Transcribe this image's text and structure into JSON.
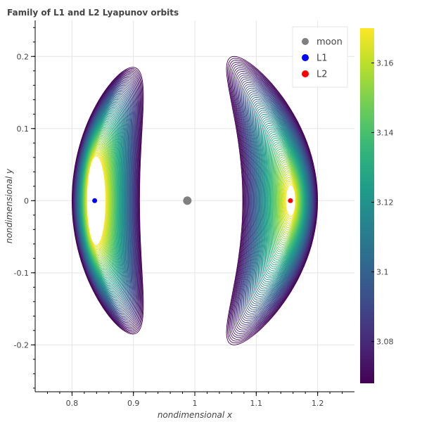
{
  "chart_data": {
    "type": "line",
    "title": "Family of L1 and L2 Lyapunov orbits",
    "xlabel": "nondimensional x",
    "ylabel": "nondimensional y",
    "xlim": [
      0.74,
      1.26
    ],
    "ylim": [
      -0.265,
      0.25
    ],
    "x_ticks": [
      "0.8",
      "0.9",
      "1",
      "1.1",
      "1.2"
    ],
    "x_tick_values": [
      0.8,
      0.9,
      1.0,
      1.1,
      1.2
    ],
    "y_ticks": [
      "0.2",
      "0.1",
      "0",
      "-0.1",
      "-0.2"
    ],
    "y_tick_values": [
      0.2,
      0.1,
      0.0,
      -0.1,
      -0.2
    ],
    "grid": true,
    "legend_position": "top-right",
    "legend": [
      {
        "label": "moon",
        "color": "#808080"
      },
      {
        "label": "L1",
        "color": "#0000ff"
      },
      {
        "label": "L2",
        "color": "#ff0000"
      }
    ],
    "points": [
      {
        "name": "moon",
        "x": 0.9878,
        "y": 0.0,
        "color": "#808080"
      },
      {
        "name": "L1",
        "x": 0.8369,
        "y": 0.0,
        "color": "#0000ff"
      },
      {
        "name": "L2",
        "x": 1.1557,
        "y": 0.0,
        "color": "#ff0000"
      }
    ],
    "families": [
      {
        "name": "L1 Lyapunov family",
        "inner_orbit": {
          "x_min": 0.824,
          "x_max": 0.855,
          "y_amp": 0.062,
          "x_shift": 0.0
        },
        "outer_orbit": {
          "x_min": 0.8,
          "x_max": 0.91,
          "y_amp": 0.185,
          "x_shift": 0.044
        },
        "orbit_count": 70
      },
      {
        "name": "L2 Lyapunov family",
        "inner_orbit": {
          "x_min": 1.148,
          "x_max": 1.164,
          "y_amp": 0.022,
          "x_shift": 0.0
        },
        "outer_orbit": {
          "x_min": 1.078,
          "x_max": 1.2,
          "y_amp": 0.2,
          "x_shift": -0.075
        },
        "orbit_count": 70
      }
    ],
    "colorbar": {
      "colormap": "viridis",
      "range": [
        3.068,
        3.17
      ],
      "ticks": [
        "3.16",
        "3.14",
        "3.12",
        "3.1",
        "3.08"
      ],
      "tick_values": [
        3.16,
        3.14,
        3.12,
        3.1,
        3.08
      ]
    }
  }
}
